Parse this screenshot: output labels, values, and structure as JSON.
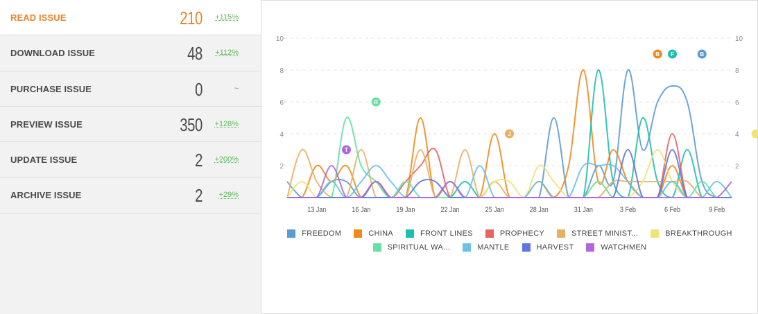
{
  "stats": [
    {
      "label": "READ ISSUE",
      "value": "210",
      "change": "+115%",
      "active": true
    },
    {
      "label": "DOWNLOAD ISSUE",
      "value": "48",
      "change": "+112%"
    },
    {
      "label": "PURCHASE ISSUE",
      "value": "0",
      "change": "~"
    },
    {
      "label": "PREVIEW ISSUE",
      "value": "350",
      "change": "+128%"
    },
    {
      "label": "UPDATE ISSUE",
      "value": "2",
      "change": "+200%"
    },
    {
      "label": "ARCHIVE ISSUE",
      "value": "2",
      "change": "+29%"
    }
  ],
  "chart_data": {
    "type": "line",
    "x": [
      "11 Jan",
      "12 Jan",
      "13 Jan",
      "14 Jan",
      "15 Jan",
      "16 Jan",
      "17 Jan",
      "18 Jan",
      "19 Jan",
      "20 Jan",
      "21 Jan",
      "22 Jan",
      "23 Jan",
      "24 Jan",
      "25 Jan",
      "26 Jan",
      "27 Jan",
      "28 Jan",
      "29 Jan",
      "30 Jan",
      "31 Jan",
      "1 Feb",
      "2 Feb",
      "3 Feb",
      "4 Feb",
      "5 Feb",
      "6 Feb",
      "7 Feb",
      "8 Feb",
      "9 Feb",
      "10 Feb"
    ],
    "x_tick_labels": [
      "13 Jan",
      "16 Jan",
      "19 Jan",
      "22 Jan",
      "25 Jan",
      "28 Jan",
      "31 Jan",
      "3 Feb",
      "6 Feb",
      "9 Feb"
    ],
    "ylim": [
      0,
      10
    ],
    "y_ticks": [
      2,
      4,
      6,
      8,
      10
    ],
    "grid": true,
    "legend_position": "bottom",
    "series": [
      {
        "name": "FREEDOM",
        "color": "#5b9bd5",
        "values": [
          1,
          0,
          0,
          1,
          1,
          0,
          1,
          0,
          0,
          0,
          0,
          0,
          0,
          0,
          0,
          0,
          0,
          0,
          5,
          0,
          0,
          2,
          1,
          8,
          3,
          6,
          7,
          6,
          1,
          0,
          0
        ]
      },
      {
        "name": "CHINA",
        "color": "#f0891c",
        "values": [
          0,
          0,
          2,
          1,
          2,
          0,
          0,
          0,
          0,
          5,
          0,
          1,
          0,
          0,
          4,
          0,
          0,
          1,
          0,
          2,
          8,
          1,
          3,
          1,
          0,
          0,
          2,
          0,
          0,
          0,
          0
        ]
      },
      {
        "name": "FRONT LINES",
        "color": "#1dbfb0",
        "values": [
          0,
          0,
          0,
          0,
          0,
          0,
          1,
          0,
          0,
          0,
          0,
          0,
          1,
          0,
          0,
          0,
          0,
          0,
          0,
          0,
          0,
          8,
          1,
          0,
          5,
          1,
          0,
          3,
          0,
          0,
          0
        ]
      },
      {
        "name": "PROPHECY",
        "color": "#e8655f",
        "values": [
          0,
          0,
          0,
          0,
          0,
          0,
          1,
          0,
          1,
          2,
          3,
          0,
          0,
          0,
          0,
          0,
          0,
          0,
          0,
          0,
          0,
          0,
          0,
          0,
          0,
          0,
          4,
          0,
          0,
          0,
          0
        ]
      },
      {
        "name": "STREET MINIST...",
        "color": "#e8b162",
        "values": [
          0,
          3,
          1,
          0,
          0,
          3,
          0,
          0,
          0,
          3,
          0,
          0,
          3,
          0,
          1,
          0,
          0,
          0,
          0,
          0,
          0,
          0,
          1,
          1,
          1,
          1,
          1,
          1,
          0,
          0,
          0
        ]
      },
      {
        "name": "BREAKTHROUGH",
        "color": "#ede47a",
        "values": [
          0,
          1,
          0,
          0,
          0,
          0,
          0,
          0,
          0,
          0,
          0,
          0,
          0,
          0,
          1,
          1,
          0,
          2,
          1,
          0,
          0,
          1,
          0,
          0,
          1,
          3,
          1,
          0,
          0,
          0,
          1
        ]
      },
      {
        "name": "SPIRITUAL WA...",
        "color": "#64e1a4",
        "values": [
          0,
          0,
          0,
          0,
          5,
          2,
          1,
          0,
          1,
          0,
          0,
          0,
          0,
          0,
          0,
          0,
          0,
          0,
          0,
          0,
          0,
          1,
          0,
          0,
          0,
          0,
          1,
          0,
          1,
          0,
          0
        ]
      },
      {
        "name": "MANTLE",
        "color": "#6bc1e8",
        "values": [
          0,
          0,
          0,
          1,
          0,
          1,
          2,
          1,
          0,
          0,
          0,
          1,
          0,
          2,
          0,
          0,
          0,
          1,
          0,
          0,
          2,
          2,
          2,
          1,
          0,
          0,
          1,
          0,
          0,
          1,
          0
        ]
      },
      {
        "name": "HARVEST",
        "color": "#5f76e0",
        "values": [
          0,
          0,
          0,
          0,
          0,
          0,
          0,
          0,
          0,
          1,
          1,
          0,
          0,
          0,
          0,
          0,
          0,
          0,
          0,
          0,
          0,
          0,
          0,
          3,
          0,
          0,
          3,
          0,
          0,
          0,
          0
        ]
      },
      {
        "name": "WATCHMEN",
        "color": "#b066e0",
        "values": [
          0,
          0,
          0,
          2,
          0,
          0,
          1,
          0,
          0,
          0,
          0,
          1,
          0,
          0,
          0,
          0,
          0,
          0,
          0,
          0,
          0,
          0,
          0,
          0,
          0,
          0,
          0,
          0,
          0,
          0,
          1
        ]
      }
    ],
    "annotations": [
      {
        "letter": "T",
        "x": "15 Jan",
        "y": 3,
        "color": "#b066e0"
      },
      {
        "letter": "R",
        "x": "17 Jan",
        "y": 6,
        "color": "#64e1a4"
      },
      {
        "letter": "J",
        "x": "26 Jan",
        "y": 4,
        "color": "#e8b162"
      },
      {
        "letter": "B",
        "x": "5 Feb",
        "y": 9,
        "color": "#f0891c"
      },
      {
        "letter": "F",
        "x": "6 Feb",
        "y": 9,
        "color": "#1dbfb0"
      },
      {
        "letter": "B",
        "x": "8 Feb",
        "y": 9,
        "color": "#5b9bd5"
      },
      {
        "letter": "",
        "x": "10 Feb",
        "y": 4,
        "color": "#ede47a"
      }
    ]
  }
}
